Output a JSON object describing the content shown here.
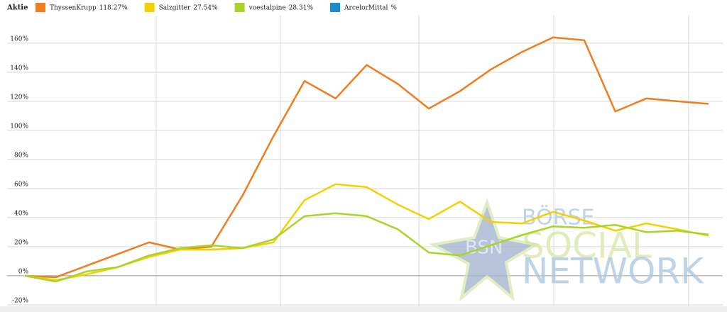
{
  "chart_data": {
    "type": "line",
    "legend_title": "Aktie",
    "categories": [
      null,
      null,
      null,
      null,
      null,
      null,
      null,
      null,
      null,
      null,
      null,
      null,
      null,
      null,
      null,
      null,
      null,
      null,
      null,
      null,
      null,
      null,
      null
    ],
    "series": [
      {
        "name": "ThyssenKrupp",
        "legend_label": "118.27%",
        "color": "#f07d1e",
        "values": [
          0,
          -1,
          7,
          15,
          23,
          18,
          20,
          55,
          96,
          134,
          122,
          145,
          132,
          115,
          127,
          142,
          154,
          164,
          162,
          113,
          122,
          120,
          118.27
        ]
      },
      {
        "name": "Salzgitter",
        "legend_label": "27.54%",
        "color": "#f5d000",
        "values": [
          0,
          -3,
          1,
          6,
          13,
          18,
          18,
          19,
          23,
          52,
          63,
          61,
          49,
          39,
          51,
          37,
          36,
          44,
          38,
          31,
          36,
          32,
          27.54
        ]
      },
      {
        "name": "voestalpine",
        "legend_label": "28.31%",
        "color": "#a8d42a",
        "values": [
          0,
          -4,
          3,
          6,
          14,
          19,
          21,
          19,
          25,
          41,
          43,
          41,
          32,
          16,
          14,
          21,
          28,
          34,
          33,
          35,
          30,
          31,
          28.31
        ]
      },
      {
        "name": "ArcelorMittal",
        "legend_label": "%",
        "color": "#1a8ccc",
        "values": [
          null,
          null,
          null,
          null,
          null,
          null,
          null,
          null,
          null,
          null,
          null,
          null,
          null,
          null,
          null,
          null,
          null,
          null,
          null,
          null,
          null,
          null,
          null
        ]
      }
    ],
    "ylim": [
      -22,
      178
    ],
    "yticks": [
      {
        "value": -20,
        "label": "-20%"
      },
      {
        "value": 0,
        "label": "0%"
      },
      {
        "value": 20,
        "label": "20%"
      },
      {
        "value": 40,
        "label": "40%"
      },
      {
        "value": 60,
        "label": "60%"
      },
      {
        "value": 80,
        "label": "80%"
      },
      {
        "value": 100,
        "label": "100%"
      },
      {
        "value": 120,
        "label": "120%"
      },
      {
        "value": 140,
        "label": "140%"
      },
      {
        "value": 160,
        "label": "160%"
      }
    ],
    "grid": true,
    "watermark": {
      "logo": "BSN",
      "lines": [
        "BÖRSE",
        "SOCIAL",
        "NETWORK"
      ]
    }
  }
}
